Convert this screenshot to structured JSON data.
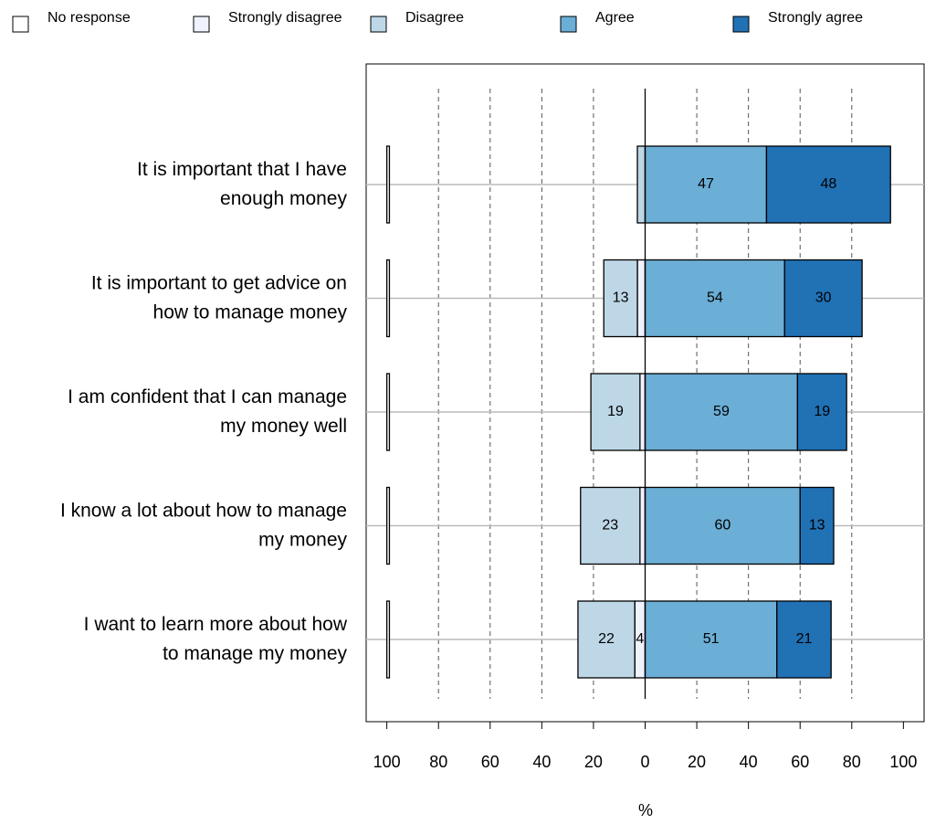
{
  "chart_data": {
    "type": "diverging_bar",
    "categories": [
      [
        "It is important that I have",
        "enough money"
      ],
      [
        "It is important to get advice on",
        "how to manage money"
      ],
      [
        "I am confident that I can manage",
        "my money well"
      ],
      [
        "I know a lot about how to manage",
        "my money"
      ],
      [
        "I want to learn more about how",
        "to manage my money"
      ]
    ],
    "series": [
      {
        "name": "No response",
        "color": "#ffffff",
        "side": "none",
        "values": [
          1,
          1,
          1,
          1,
          1
        ]
      },
      {
        "name": "Strongly disagree",
        "color": "#eff3ff",
        "side": "left",
        "values": [
          0,
          3,
          2,
          2,
          4
        ]
      },
      {
        "name": "Disagree",
        "color": "#bdd7e7",
        "side": "left",
        "values": [
          3,
          13,
          19,
          23,
          22
        ]
      },
      {
        "name": "Agree",
        "color": "#6baed6",
        "side": "right",
        "values": [
          47,
          54,
          59,
          60,
          51
        ]
      },
      {
        "name": "Strongly agree",
        "color": "#2171b5",
        "side": "right",
        "values": [
          48,
          30,
          19,
          13,
          21
        ]
      }
    ],
    "xlim": [
      -108,
      108
    ],
    "xticks": [
      {
        "value": -100,
        "label": "100"
      },
      {
        "value": -80,
        "label": "80"
      },
      {
        "value": -60,
        "label": "60"
      },
      {
        "value": -40,
        "label": "40"
      },
      {
        "value": -20,
        "label": "20"
      },
      0,
      20,
      40,
      60,
      80,
      100
    ],
    "xlabel": "%",
    "grid": true
  }
}
